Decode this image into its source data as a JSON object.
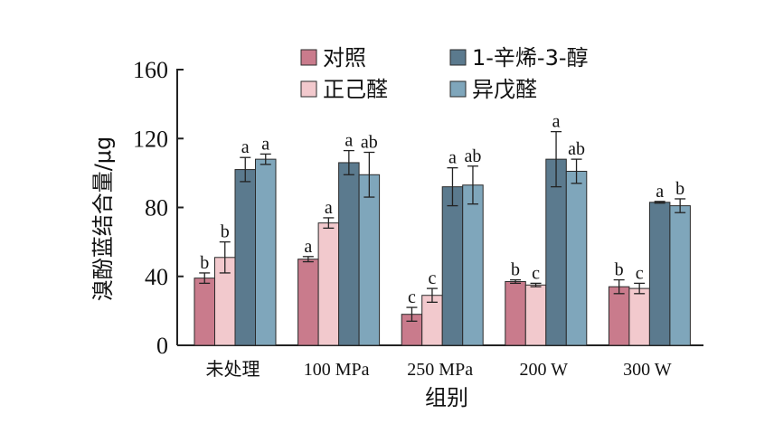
{
  "chart_data": {
    "type": "bar",
    "title": "",
    "xlabel": "组别",
    "ylabel": "溴酚蓝结合量/μg",
    "ylim": [
      0,
      160
    ],
    "yticks": [
      0,
      40,
      80,
      120,
      160
    ],
    "grid": false,
    "legend_position": "top",
    "categories": [
      "未处理",
      "100 MPa",
      "250 MPa",
      "200 W",
      "300 W"
    ],
    "series": [
      {
        "name": "对照",
        "color": "#C97B8C",
        "values": [
          39,
          50,
          18,
          37,
          34
        ],
        "errors": [
          3,
          1.5,
          4,
          1,
          4
        ],
        "labels": [
          "b",
          "a",
          "c",
          "b",
          "b"
        ]
      },
      {
        "name": "正己醛",
        "color": "#F2C9CD",
        "values": [
          51,
          71,
          29,
          35,
          33
        ],
        "errors": [
          9,
          3,
          4,
          1,
          3
        ],
        "labels": [
          "b",
          "a",
          "c",
          "c",
          "c"
        ]
      },
      {
        "name": "1-辛烯-3-醇",
        "color": "#5B7A8E",
        "values": [
          102,
          106,
          92,
          108,
          83
        ],
        "errors": [
          7,
          7,
          11,
          16,
          0.5
        ],
        "labels": [
          "a",
          "a",
          "a",
          "a",
          "a"
        ]
      },
      {
        "name": "异戊醛",
        "color": "#7FA6BB",
        "values": [
          108,
          99,
          93,
          101,
          81
        ],
        "errors": [
          3,
          13,
          11,
          7,
          4
        ],
        "labels": [
          "a",
          "ab",
          "ab",
          "ab",
          "b"
        ]
      }
    ]
  }
}
